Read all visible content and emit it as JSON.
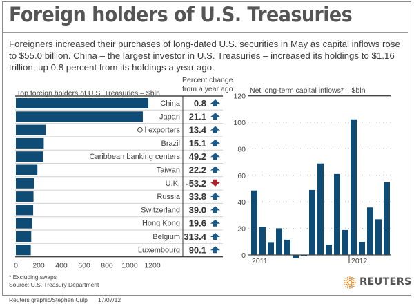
{
  "page": {
    "title": "Foreign holders of U.S. Treasuries",
    "intro": "Foreigners increased their purchases of long-dated U.S. securities in May as capital inflows rose to $55.0 billion. China – the largest investor in U.S. Treasuries – increased its holdings to $1.16 trillion, up 0.8 percent from its holdings a year ago.",
    "footnote": "* Excluding swaps",
    "source": "Source: U.S. Treasury Department",
    "credit": "Reuters graphic/Stephen Culp",
    "date": "17/07/12",
    "logo_text": "REUTERS",
    "colors": {
      "bar": "#0f4c75",
      "up_arrow": "#1a5a8a",
      "down_arrow": "#b0202a",
      "logo_orange": "#f08a24"
    }
  },
  "chart_data": [
    {
      "type": "bar",
      "orientation": "horizontal",
      "title": "Top foreign holders of U.S. Treasuries – $bln",
      "categories": [
        "China",
        "Japan",
        "Oil exporters",
        "Brazil",
        "Caribbean banking centers",
        "Taiwan",
        "U.K.",
        "Russia",
        "Switzerland",
        "Hong Kong",
        "Belgium",
        "Luxembourg"
      ],
      "values": [
        1164,
        1115,
        262,
        245,
        240,
        189,
        160,
        155,
        152,
        143,
        135,
        131
      ],
      "xlim": [
        0,
        1300
      ],
      "xticks": [
        "0",
        "200",
        "400",
        "600",
        "800",
        "1000",
        "1200"
      ],
      "xtick_values": [
        0,
        200,
        400,
        600,
        800,
        1000,
        1200
      ],
      "table": {
        "header": "Percent change from a year ago",
        "header_lines": [
          "Percent change",
          "from a year ago"
        ],
        "values": [
          "0.8",
          "21.1",
          "13.4",
          "15.1",
          "49.2",
          "22.2",
          "-53.2",
          "33.8",
          "39.0",
          "19.6",
          "313.4",
          "90.1"
        ],
        "directions": [
          "up",
          "up",
          "up",
          "up",
          "up",
          "up",
          "down",
          "up",
          "up",
          "up",
          "up",
          "up"
        ]
      }
    },
    {
      "type": "bar",
      "orientation": "vertical",
      "title": "Net long-term capital inflows* – $bln",
      "x": [
        "Jan 2011",
        "Feb 2011",
        "Mar 2011",
        "Apr 2011",
        "May 2011",
        "Jun 2011",
        "Jul 2011",
        "Aug 2011",
        "Sep 2011",
        "Oct 2011",
        "Nov 2011",
        "Dec 2011",
        "Jan 2012",
        "Feb 2012",
        "Mar 2012",
        "Apr 2012",
        "May 2012"
      ],
      "values": [
        48.6,
        21.2,
        9.7,
        20.1,
        11.5,
        -2.5,
        -0.8,
        49.0,
        68.9,
        7.8,
        61.0,
        18.8,
        102.2,
        9.9,
        35.8,
        26.9,
        55.0
      ],
      "ylim": [
        0,
        120
      ],
      "yticks": [
        "0",
        "20",
        "40",
        "60",
        "80",
        "100",
        "120"
      ],
      "ytick_values": [
        0,
        20,
        40,
        60,
        80,
        100,
        120
      ],
      "xtick_labels": [
        {
          "label": "2011",
          "index": 0
        },
        {
          "label": "2012",
          "index": 12
        }
      ],
      "grid": "horizontal dotted"
    }
  ]
}
